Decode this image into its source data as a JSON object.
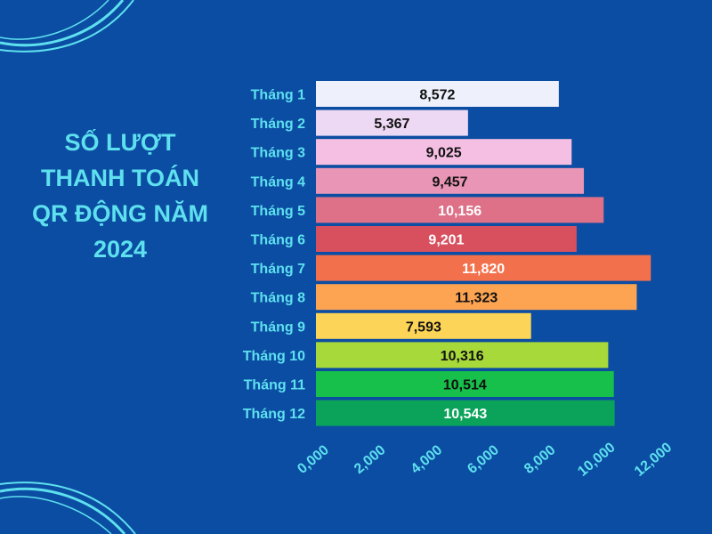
{
  "title_lines": [
    "SỐ LƯỢT",
    "THANH TOÁN",
    "QR ĐỘNG NĂM",
    "2024"
  ],
  "chart_data": {
    "type": "bar",
    "orientation": "horizontal",
    "title": "SỐ LƯỢT THANH TOÁN QR ĐỘNG NĂM 2024",
    "categories": [
      "Tháng 1",
      "Tháng 2",
      "Tháng 3",
      "Tháng 4",
      "Tháng 5",
      "Tháng 6",
      "Tháng 7",
      "Tháng 8",
      "Tháng 9",
      "Tháng 10",
      "Tháng 11",
      "Tháng 12"
    ],
    "values": [
      8572,
      5367,
      9025,
      9457,
      10156,
      9201,
      11820,
      11323,
      7593,
      10316,
      10514,
      10543
    ],
    "value_labels": [
      "8,572",
      "5,367",
      "9,025",
      "9,457",
      "10,156",
      "9,201",
      "11,820",
      "11,323",
      "7,593",
      "10,316",
      "10,514",
      "10,543"
    ],
    "bar_colors": [
      "#eef1fb",
      "#eed9f5",
      "#f4bfe2",
      "#e895b6",
      "#de7088",
      "#d84f5e",
      "#f3704c",
      "#fca452",
      "#fcd457",
      "#a8d93a",
      "#16c04a",
      "#0ba35a"
    ],
    "label_colors": [
      "#111111",
      "#111111",
      "#111111",
      "#111111",
      "#ffffff",
      "#ffffff",
      "#ffffff",
      "#111111",
      "#111111",
      "#111111",
      "#111111",
      "#ffffff"
    ],
    "xlim": [
      0,
      12000
    ],
    "x_ticks": [
      0,
      2000,
      4000,
      6000,
      8000,
      10000,
      12000
    ],
    "x_tick_labels": [
      "0,000",
      "2,000",
      "4,000",
      "6,000",
      "8,000",
      "10,000",
      "12,000"
    ],
    "grid": false,
    "legend": "none",
    "colors": {
      "background": "#0b4da2",
      "text_accent": "#5ee0ef"
    }
  }
}
